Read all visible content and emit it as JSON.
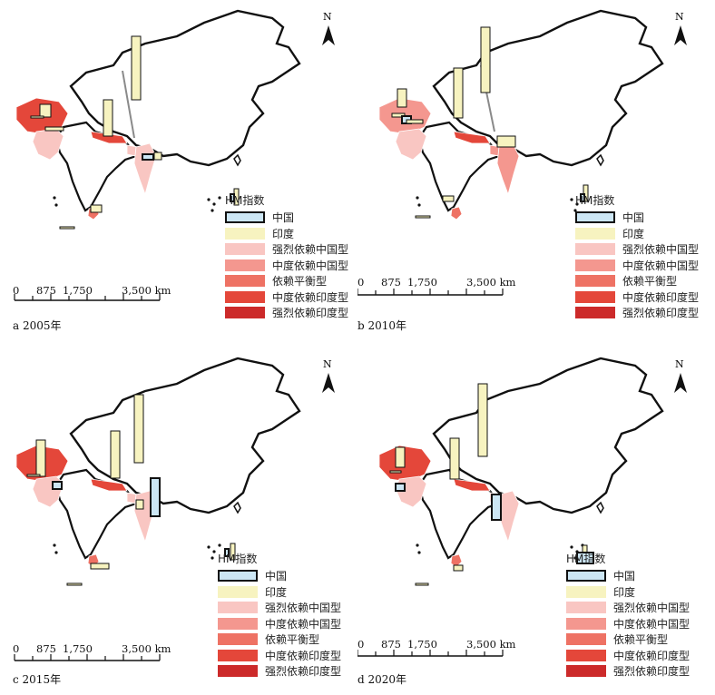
{
  "panels": [
    {
      "label": "a 2005年",
      "id": "a"
    },
    {
      "label": "b 2010年",
      "id": "b"
    },
    {
      "label": "c 2015年",
      "id": "c"
    },
    {
      "label": "d 2020年",
      "id": "d"
    }
  ],
  "legend": {
    "title": "HM指数",
    "items": [
      {
        "label": "中国",
        "color": "#cce6f4",
        "boxed": true
      },
      {
        "label": "印度",
        "color": "#f7f3c0",
        "boxed": false
      },
      {
        "label": "强烈依赖中国型",
        "color": "#f9c6c2",
        "boxed": false
      },
      {
        "label": "中度依赖中国型",
        "color": "#f4978f",
        "boxed": false
      },
      {
        "label": "依赖平衡型",
        "color": "#ee7264",
        "boxed": false
      },
      {
        "label": "中度依赖印度型",
        "color": "#e4473a",
        "boxed": false
      },
      {
        "label": "强烈依赖印度型",
        "color": "#cc2a2a",
        "boxed": false
      }
    ]
  },
  "scale": {
    "ticks": [
      "0",
      "875",
      "1,750",
      "3,500 km"
    ]
  },
  "north_label": "N",
  "colors": {
    "outline": "#111111",
    "pointer": "#8a8a8a"
  }
}
